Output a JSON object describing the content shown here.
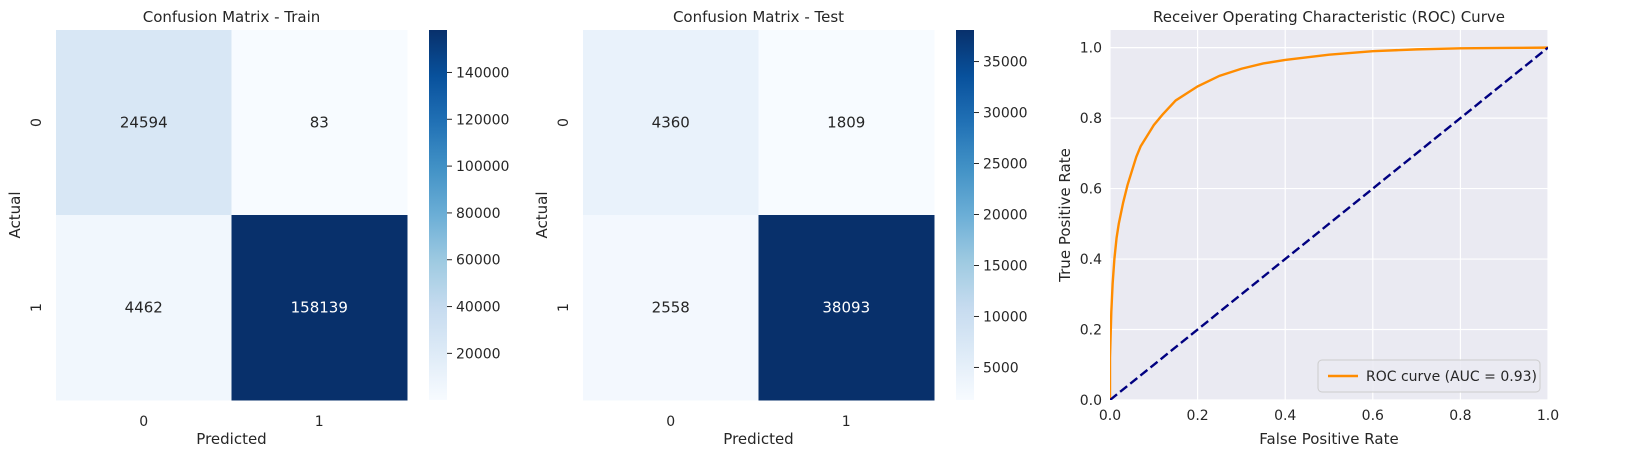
{
  "chart_data": [
    {
      "type": "heatmap",
      "title": "Confusion Matrix - Train",
      "xlabel": "Predicted",
      "ylabel": "Actual",
      "x_categories": [
        "0",
        "1"
      ],
      "y_categories": [
        "0",
        "1"
      ],
      "values": [
        [
          24594,
          83
        ],
        [
          4462,
          158139
        ]
      ],
      "colormap": "Blues",
      "colorbar": {
        "min": 83,
        "max": 158139,
        "ticks": [
          20000,
          40000,
          60000,
          80000,
          100000,
          120000,
          140000
        ]
      }
    },
    {
      "type": "heatmap",
      "title": "Confusion Matrix - Test",
      "xlabel": "Predicted",
      "ylabel": "Actual",
      "x_categories": [
        "0",
        "1"
      ],
      "y_categories": [
        "0",
        "1"
      ],
      "values": [
        [
          4360,
          1809
        ],
        [
          2558,
          38093
        ]
      ],
      "colormap": "Blues",
      "colorbar": {
        "min": 1809,
        "max": 38093,
        "ticks": [
          5000,
          10000,
          15000,
          20000,
          25000,
          30000,
          35000
        ]
      }
    },
    {
      "type": "line",
      "title": "Receiver Operating Characteristic (ROC) Curve",
      "xlabel": "False Positive Rate",
      "ylabel": "True Positive Rate",
      "xlim": [
        0.0,
        1.0
      ],
      "ylim": [
        0.0,
        1.05
      ],
      "xticks": [
        "0.0",
        "0.2",
        "0.4",
        "0.6",
        "0.8",
        "1.0"
      ],
      "yticks": [
        "0.0",
        "0.2",
        "0.4",
        "0.6",
        "0.8",
        "1.0"
      ],
      "grid": true,
      "legend_position": "lower-right",
      "series": [
        {
          "name": "ROC curve (AUC = 0.93)",
          "color": "#ff8c00",
          "style": "solid",
          "x": [
            0.0,
            0.0,
            0.003,
            0.006,
            0.01,
            0.015,
            0.02,
            0.03,
            0.04,
            0.05,
            0.06,
            0.07,
            0.08,
            0.1,
            0.12,
            0.15,
            0.2,
            0.25,
            0.3,
            0.35,
            0.4,
            0.5,
            0.6,
            0.7,
            0.8,
            0.9,
            1.0
          ],
          "y": [
            0.0,
            0.12,
            0.25,
            0.33,
            0.4,
            0.46,
            0.5,
            0.56,
            0.61,
            0.65,
            0.69,
            0.72,
            0.74,
            0.78,
            0.81,
            0.85,
            0.89,
            0.92,
            0.94,
            0.955,
            0.965,
            0.98,
            0.99,
            0.995,
            0.998,
            0.999,
            1.0
          ]
        },
        {
          "name": "",
          "color": "#000080",
          "style": "dashed",
          "x": [
            0.0,
            1.0
          ],
          "y": [
            0.0,
            1.0
          ]
        }
      ]
    }
  ]
}
